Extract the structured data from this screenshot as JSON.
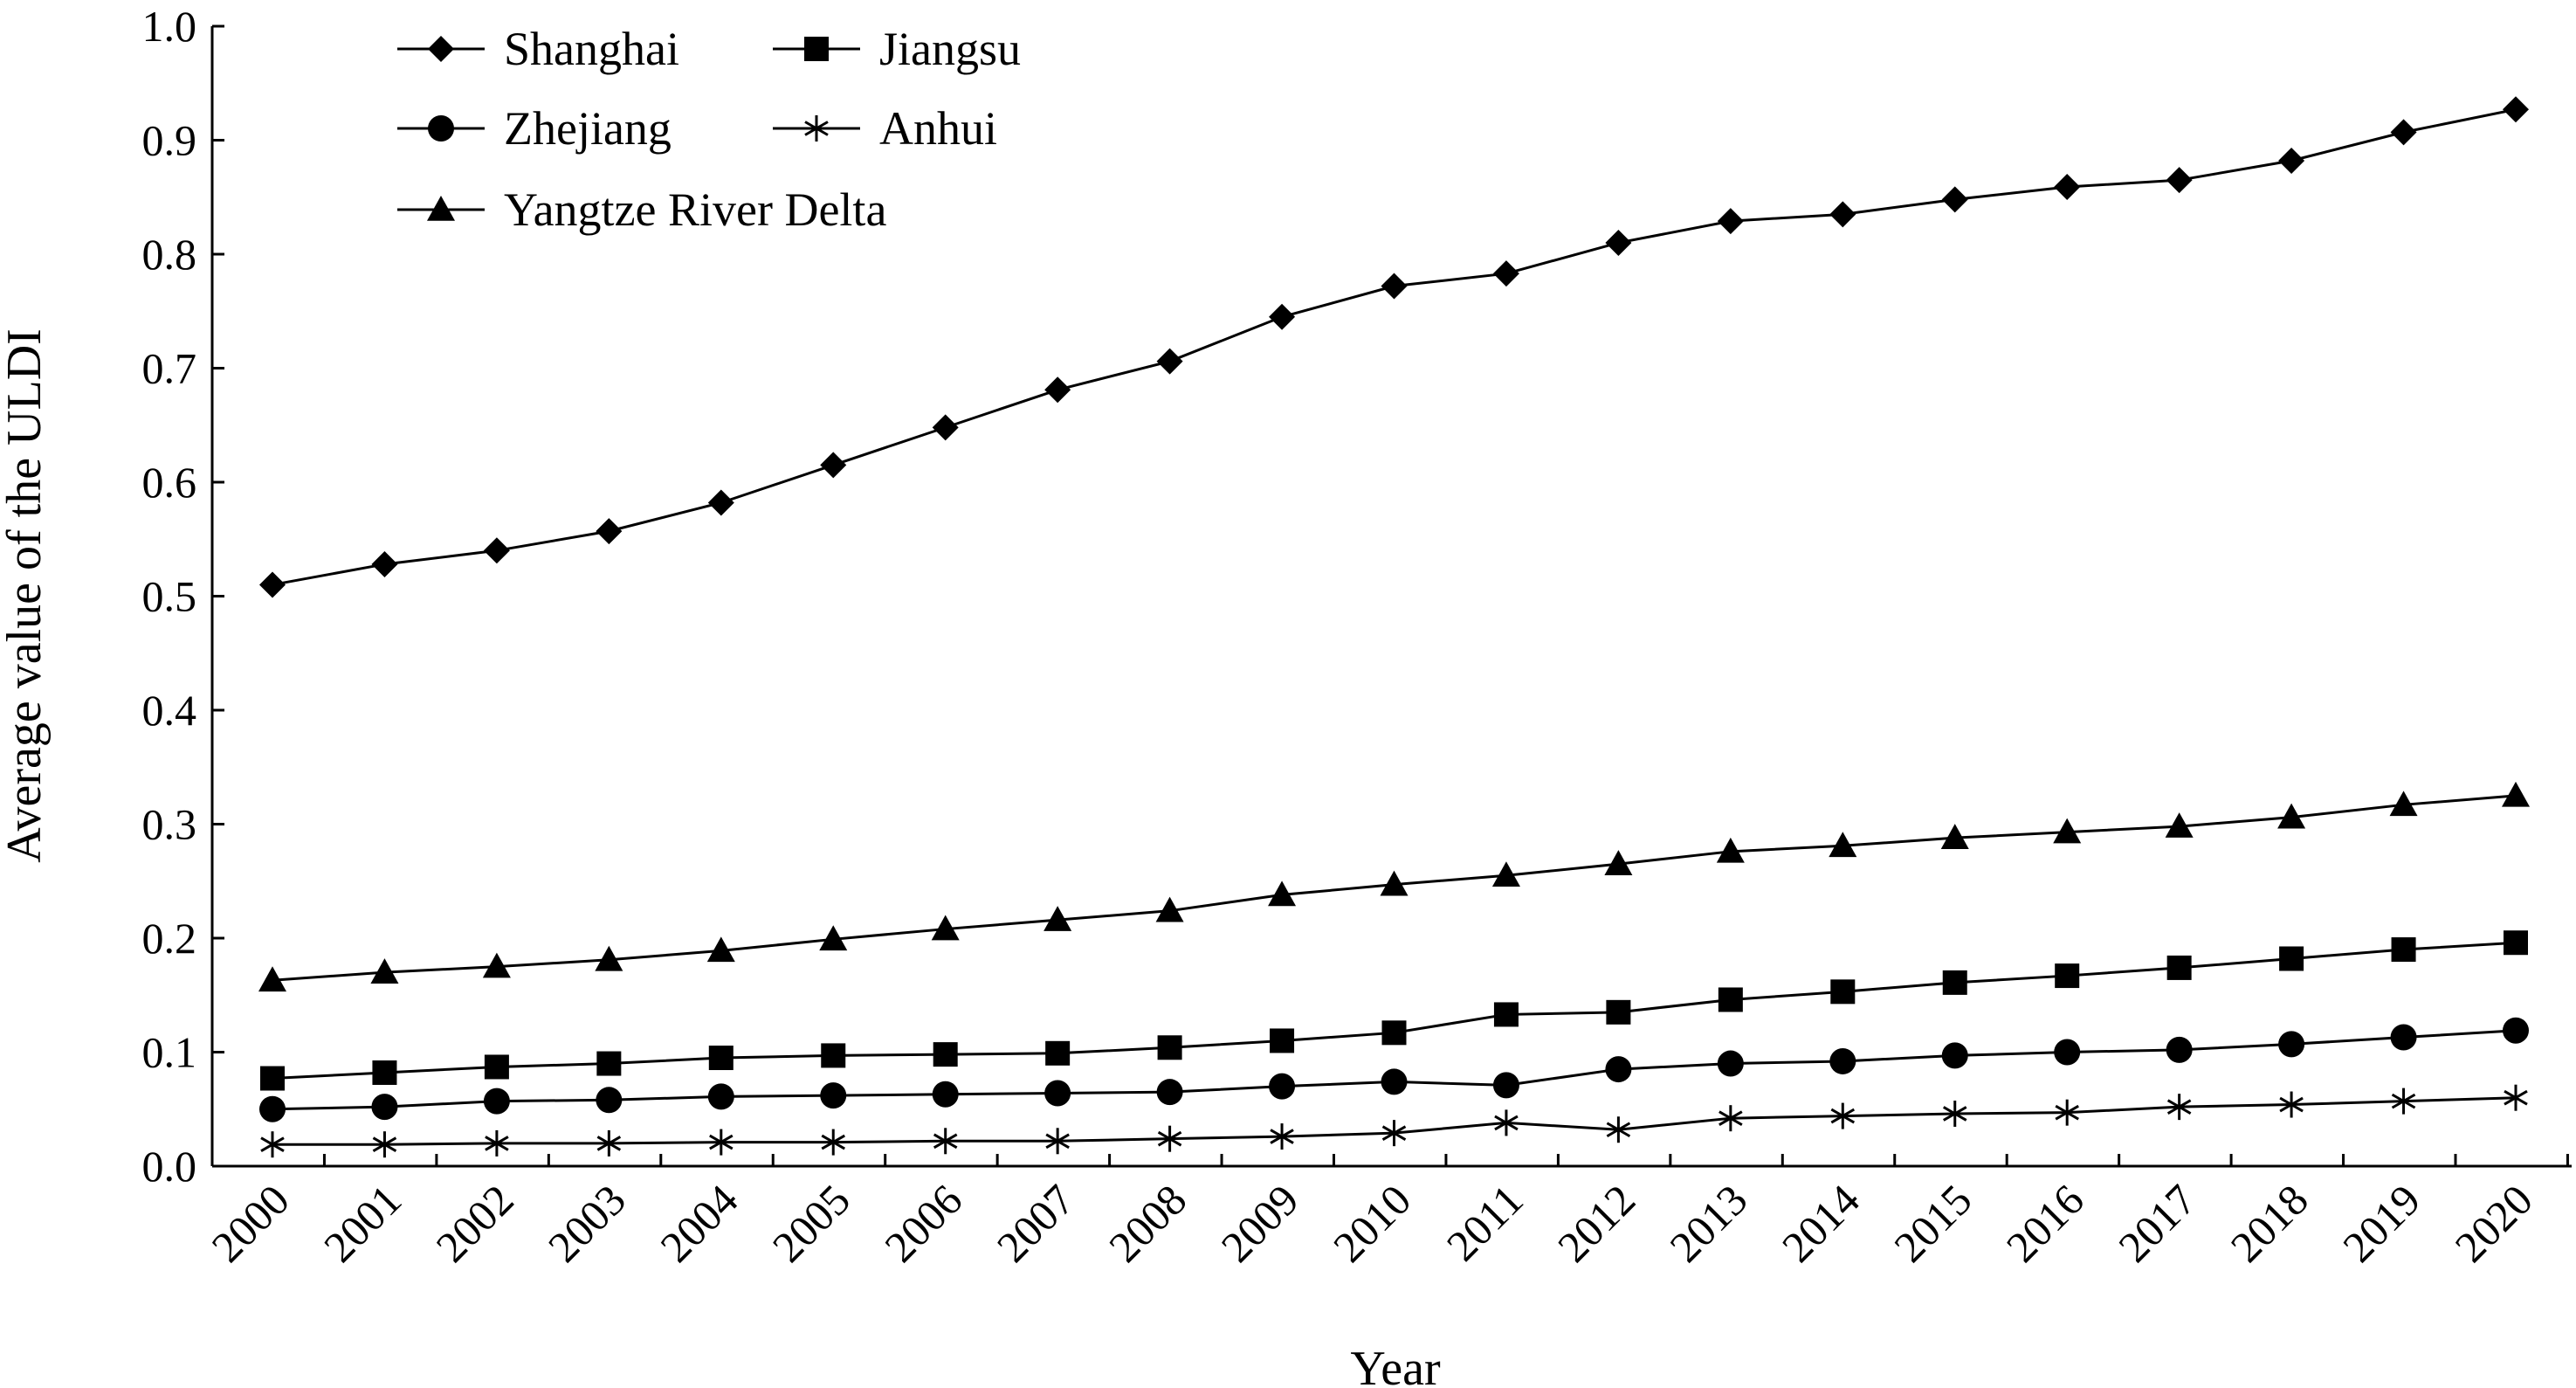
{
  "chart_data": {
    "type": "line",
    "xlabel": "Year",
    "ylabel": "Average value of the ULDI",
    "ylim": [
      0.0,
      1.0
    ],
    "y_ticks": [
      "0.0",
      "0.1",
      "0.2",
      "0.3",
      "0.4",
      "0.5",
      "0.6",
      "0.7",
      "0.8",
      "0.9",
      "1.0"
    ],
    "categories": [
      "2000",
      "2001",
      "2002",
      "2003",
      "2004",
      "2005",
      "2006",
      "2007",
      "2008",
      "2009",
      "2010",
      "2011",
      "2012",
      "2013",
      "2014",
      "2015",
      "2016",
      "2017",
      "2018",
      "2019",
      "2020"
    ],
    "grid": false,
    "legend_position": "top-left",
    "series": [
      {
        "name": "Shanghai",
        "marker": "diamond",
        "values": [
          0.51,
          0.528,
          0.54,
          0.557,
          0.582,
          0.615,
          0.648,
          0.681,
          0.706,
          0.745,
          0.772,
          0.783,
          0.81,
          0.829,
          0.835,
          0.848,
          0.859,
          0.865,
          0.882,
          0.907,
          0.927
        ]
      },
      {
        "name": "Jiangsu",
        "marker": "square",
        "values": [
          0.077,
          0.082,
          0.087,
          0.09,
          0.095,
          0.097,
          0.098,
          0.099,
          0.104,
          0.11,
          0.117,
          0.133,
          0.135,
          0.146,
          0.153,
          0.161,
          0.167,
          0.174,
          0.182,
          0.19,
          0.196
        ]
      },
      {
        "name": "Zhejiang",
        "marker": "circle",
        "values": [
          0.05,
          0.052,
          0.057,
          0.058,
          0.061,
          0.062,
          0.063,
          0.064,
          0.065,
          0.07,
          0.074,
          0.071,
          0.085,
          0.09,
          0.092,
          0.097,
          0.1,
          0.102,
          0.107,
          0.113,
          0.119
        ]
      },
      {
        "name": "Anhui",
        "marker": "asterisk",
        "values": [
          0.019,
          0.019,
          0.02,
          0.02,
          0.021,
          0.021,
          0.022,
          0.022,
          0.024,
          0.026,
          0.029,
          0.038,
          0.032,
          0.042,
          0.044,
          0.046,
          0.047,
          0.052,
          0.054,
          0.057,
          0.06
        ]
      },
      {
        "name": "Yangtze River Delta",
        "marker": "triangle",
        "values": [
          0.163,
          0.17,
          0.175,
          0.181,
          0.189,
          0.199,
          0.208,
          0.216,
          0.224,
          0.238,
          0.247,
          0.255,
          0.265,
          0.276,
          0.281,
          0.288,
          0.293,
          0.298,
          0.306,
          0.317,
          0.325
        ]
      }
    ]
  },
  "colors": {
    "line": "#000000",
    "background": "#ffffff"
  }
}
